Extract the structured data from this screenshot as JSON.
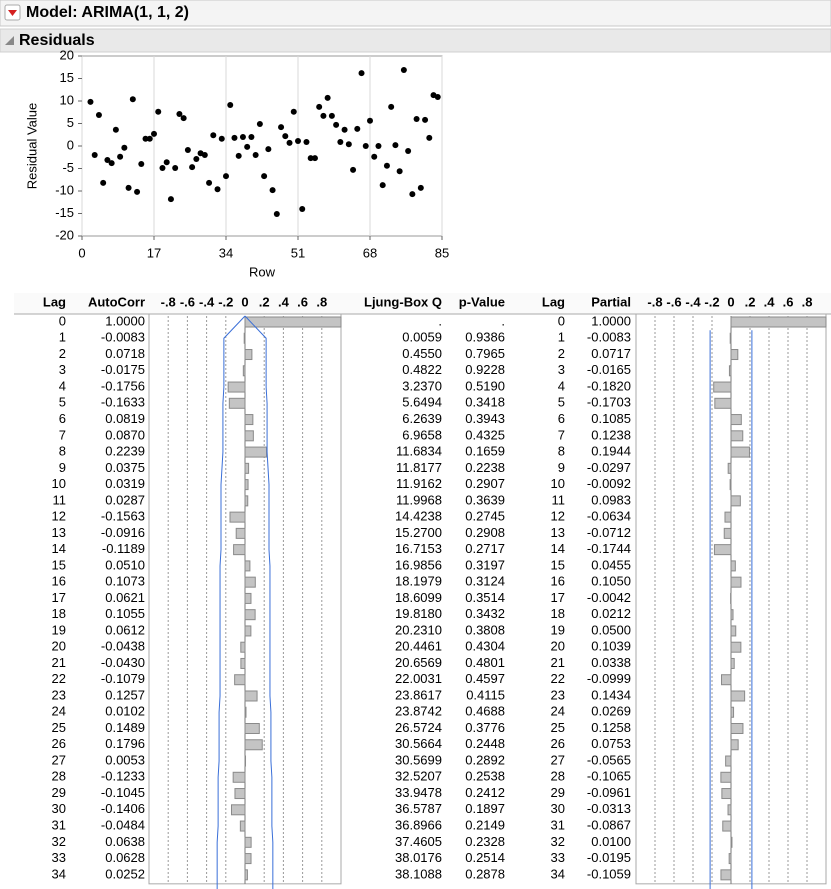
{
  "header": {
    "title": "Model: ARIMA(1, 1, 2)"
  },
  "section": {
    "title": "Residuals"
  },
  "chart_data": {
    "type": "scatter",
    "x_label": "Row",
    "y_label": "Residual Value",
    "color": "#000000",
    "grid": "x",
    "xlim": [
      0,
      85
    ],
    "xticks": [
      0,
      17,
      34,
      51,
      68,
      85
    ],
    "ylim": [
      -20,
      20
    ],
    "yticks": [
      -20,
      -15,
      -10,
      -5,
      0,
      5,
      10,
      15,
      20
    ],
    "x": [
      2,
      3,
      4,
      5,
      6,
      7,
      8,
      9,
      10,
      11,
      12,
      13,
      14,
      15,
      16,
      17,
      18,
      19,
      20,
      21,
      22,
      23,
      24,
      25,
      26,
      27,
      28,
      29,
      30,
      31,
      32,
      33,
      34,
      35,
      36,
      37,
      38,
      39,
      40,
      41,
      42,
      43,
      44,
      45,
      46,
      47,
      48,
      49,
      50,
      51,
      52,
      53,
      54,
      55,
      56,
      57,
      58,
      59,
      60,
      61,
      62,
      63,
      64,
      65,
      66,
      67,
      68,
      69,
      70,
      71,
      72,
      73,
      74,
      75,
      76,
      77,
      78,
      79,
      80,
      81,
      82,
      83,
      84
    ],
    "values": [
      9.8,
      -2,
      6.9,
      -8.2,
      -3.1,
      -3.8,
      3.6,
      -2.4,
      -0.4,
      -9.3,
      10.4,
      -10.2,
      -4,
      1.6,
      1.6,
      2.7,
      7.6,
      -4.9,
      -3.6,
      -11.8,
      -4.9,
      7.1,
      6.2,
      -0.9,
      -4.7,
      -2.9,
      -1.6,
      -2,
      -8.2,
      2.4,
      -9.6,
      1.6,
      -6.7,
      9.1,
      1.8,
      -2.2,
      2,
      -0.2,
      2,
      -2,
      4.9,
      -6.7,
      -0.7,
      -9.8,
      -15.1,
      4.2,
      2.2,
      0.7,
      7.6,
      1.1,
      -14,
      0.9,
      -2.7,
      -2.7,
      8.7,
      6.7,
      10.7,
      6.7,
      4.7,
      0.9,
      3.6,
      0.4,
      -5.3,
      3.8,
      16.2,
      0,
      5.6,
      -2.4,
      0,
      -8.7,
      -4.4,
      8.7,
      0.2,
      -5.6,
      16.9,
      -1.1,
      -10.7,
      6,
      -9.3,
      5.8,
      1.8,
      11.3,
      10.9
    ]
  },
  "acf": {
    "columns": [
      "Lag",
      "AutoCorr",
      "Ljung-Box Q",
      "p-Value"
    ],
    "xlim": [
      -1,
      1
    ],
    "ticks": [
      {
        "value": -0.8,
        "label": "-.8"
      },
      {
        "value": -0.6,
        "label": "-.6"
      },
      {
        "value": -0.4,
        "label": "-.4"
      },
      {
        "value": -0.2,
        "label": "-.2"
      },
      0,
      {
        "value": 0.2,
        "label": ".2"
      },
      {
        "value": 0.4,
        "label": ".4"
      },
      {
        "value": 0.6,
        "label": ".6"
      },
      {
        "value": 0.8,
        "label": ".8"
      }
    ],
    "lags": [
      0,
      1,
      2,
      3,
      4,
      5,
      6,
      7,
      8,
      9,
      10,
      11,
      12,
      13,
      14,
      15,
      16,
      17,
      18,
      19,
      20,
      21,
      22,
      23,
      24,
      25,
      26,
      27,
      28,
      29,
      30,
      31,
      32,
      33,
      34
    ],
    "autocorr": [
      1.0,
      -0.0083,
      0.0718,
      -0.0175,
      -0.1756,
      -0.1633,
      0.0819,
      0.087,
      0.2239,
      0.0375,
      0.0319,
      0.0287,
      -0.1563,
      -0.0916,
      -0.1189,
      0.051,
      0.1073,
      0.0621,
      0.1055,
      0.0612,
      -0.0438,
      -0.043,
      -0.1079,
      0.1257,
      0.0102,
      0.1489,
      0.1796,
      0.0053,
      -0.1233,
      -0.1045,
      -0.1406,
      -0.0484,
      0.0638,
      0.0628,
      0.0252
    ],
    "autocorr_labels": [
      "1.0000",
      "-0.0083",
      "0.0718",
      "-0.0175",
      "-0.1756",
      "-0.1633",
      "0.0819",
      "0.0870",
      "0.2239",
      "0.0375",
      "0.0319",
      "0.0287",
      "-0.1563",
      "-0.0916",
      "-0.1189",
      "0.0510",
      "0.1073",
      "0.0621",
      "0.1055",
      "0.0612",
      "-0.0438",
      "-0.0430",
      "-0.1079",
      "0.1257",
      "0.0102",
      "0.1489",
      "0.1796",
      "0.0053",
      "-0.1233",
      "-0.1045",
      "-0.1406",
      "-0.0484",
      "0.0638",
      "0.0628",
      "0.0252"
    ],
    "limits": [
      0,
      0.22,
      0.22,
      0.22,
      0.22,
      0.23,
      0.23,
      0.23,
      0.23,
      0.24,
      0.25,
      0.25,
      0.25,
      0.25,
      0.25,
      0.26,
      0.26,
      0.26,
      0.26,
      0.26,
      0.26,
      0.26,
      0.26,
      0.26,
      0.27,
      0.27,
      0.27,
      0.27,
      0.28,
      0.28,
      0.28,
      0.28,
      0.29,
      0.29,
      0.29
    ],
    "q": [
      ".",
      "0.0059",
      "0.4550",
      "0.4822",
      "3.2370",
      "5.6494",
      "6.2639",
      "6.9658",
      "11.6834",
      "11.8177",
      "11.9162",
      "11.9968",
      "14.4238",
      "15.2700",
      "16.7153",
      "16.9856",
      "18.1979",
      "18.6099",
      "19.8180",
      "20.2310",
      "20.4461",
      "20.6569",
      "22.0031",
      "23.8617",
      "23.8742",
      "26.5724",
      "30.5664",
      "30.5699",
      "32.5207",
      "33.9478",
      "36.5787",
      "36.8966",
      "37.4605",
      "38.0176",
      "38.1088"
    ],
    "p": [
      ".",
      "0.9386",
      "0.7965",
      "0.9228",
      "0.5190",
      "0.3418",
      "0.3943",
      "0.4325",
      "0.1659",
      "0.2238",
      "0.2907",
      "0.3639",
      "0.2745",
      "0.2908",
      "0.2717",
      "0.3197",
      "0.3124",
      "0.3514",
      "0.3432",
      "0.3808",
      "0.4304",
      "0.4801",
      "0.4597",
      "0.4115",
      "0.4688",
      "0.3776",
      "0.2448",
      "0.2892",
      "0.2538",
      "0.2412",
      "0.1897",
      "0.2149",
      "0.2328",
      "0.2514",
      "0.2878"
    ]
  },
  "pacf": {
    "columns": [
      "Lag",
      "Partial"
    ],
    "xlim": [
      -1,
      1
    ],
    "limit": 0.22,
    "ticks": [
      {
        "value": -0.8,
        "label": "-.8"
      },
      {
        "value": -0.6,
        "label": "-.6"
      },
      {
        "value": -0.4,
        "label": "-.4"
      },
      {
        "value": -0.2,
        "label": "-.2"
      },
      0,
      {
        "value": 0.2,
        "label": ".2"
      },
      {
        "value": 0.4,
        "label": ".4"
      },
      {
        "value": 0.6,
        "label": ".6"
      },
      {
        "value": 0.8,
        "label": ".8"
      }
    ],
    "lags": [
      0,
      1,
      2,
      3,
      4,
      5,
      6,
      7,
      8,
      9,
      10,
      11,
      12,
      13,
      14,
      15,
      16,
      17,
      18,
      19,
      20,
      21,
      22,
      23,
      24,
      25,
      26,
      27,
      28,
      29,
      30,
      31,
      32,
      33,
      34
    ],
    "partial": [
      1.0,
      -0.0083,
      0.0717,
      -0.0165,
      -0.182,
      -0.1703,
      0.1085,
      0.1238,
      0.1944,
      -0.0297,
      -0.0092,
      0.0983,
      -0.0634,
      -0.0712,
      -0.1744,
      0.0455,
      0.105,
      -0.0042,
      0.0212,
      0.05,
      0.1039,
      0.0338,
      -0.0999,
      0.1434,
      0.0269,
      0.1258,
      0.0753,
      -0.0565,
      -0.1065,
      -0.0961,
      -0.0313,
      -0.0867,
      0.01,
      -0.0195,
      -0.1059
    ],
    "partial_labels": [
      "1.0000",
      "-0.0083",
      "0.0717",
      "-0.0165",
      "-0.1820",
      "-0.1703",
      "0.1085",
      "0.1238",
      "0.1944",
      "-0.0297",
      "-0.0092",
      "0.0983",
      "-0.0634",
      "-0.0712",
      "-0.1744",
      "0.0455",
      "0.1050",
      "-0.0042",
      "0.0212",
      "0.0500",
      "0.1039",
      "0.0338",
      "-0.0999",
      "0.1434",
      "0.0269",
      "0.1258",
      "0.0753",
      "-0.0565",
      "-0.1065",
      "-0.0961",
      "-0.0313",
      "-0.0867",
      "0.0100",
      "-0.0195",
      "-0.1059"
    ]
  }
}
